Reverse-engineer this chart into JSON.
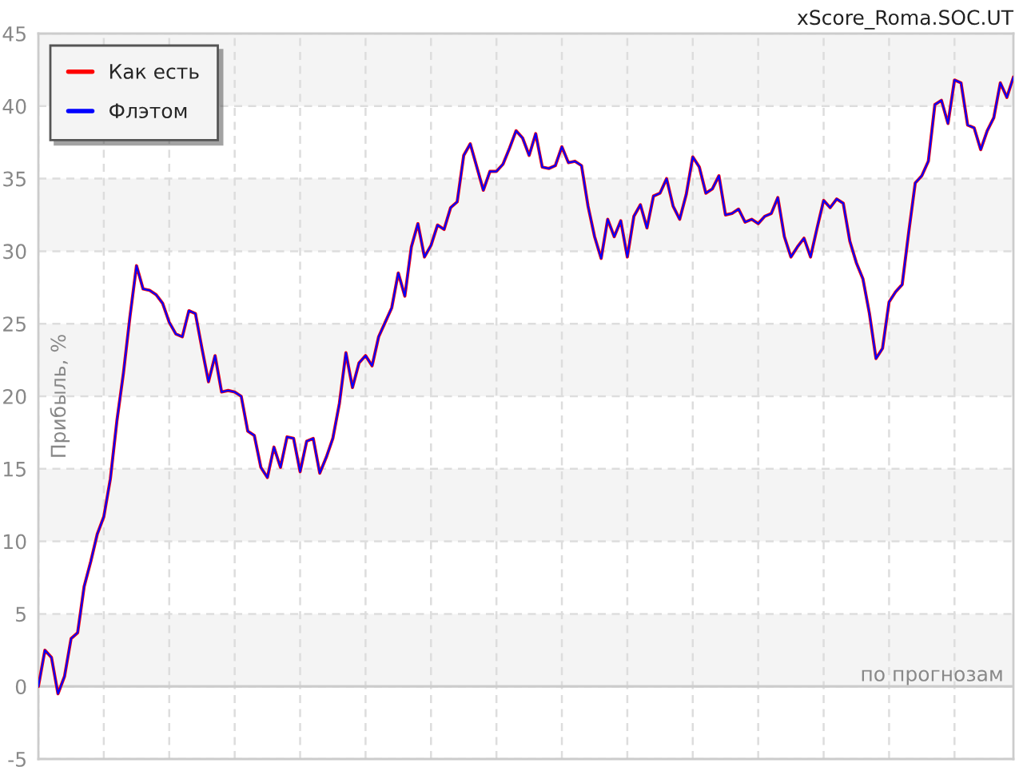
{
  "chart_data": {
    "type": "line",
    "title": "xScore_Roma.SOC.UT",
    "xlabel": "по прогнозам",
    "ylabel": "Прибыль, %",
    "categories": [
      null,
      null,
      null,
      null,
      null,
      null,
      null,
      null,
      null,
      null,
      null,
      null,
      null,
      null,
      null,
      null,
      null,
      null,
      null,
      null,
      null,
      null,
      null,
      null,
      null,
      null,
      null,
      null,
      null,
      null,
      null,
      null,
      null,
      null,
      null,
      null,
      null,
      null,
      null,
      null,
      null,
      null,
      null,
      null,
      null,
      null,
      null,
      null,
      null,
      null,
      null,
      null,
      null,
      null,
      null,
      null,
      null,
      null,
      null,
      null,
      null,
      null,
      null,
      null,
      null,
      null,
      null,
      null,
      null,
      null,
      null,
      null,
      null,
      null,
      null,
      null,
      null,
      null,
      null,
      null,
      null,
      null,
      null,
      null,
      null,
      null,
      null,
      null,
      null,
      null,
      null,
      null,
      null,
      null,
      null,
      null,
      null,
      null,
      null,
      null,
      null,
      null,
      null,
      null,
      null,
      null,
      null,
      null,
      null,
      null,
      null,
      null,
      null,
      null,
      null,
      null,
      null,
      null,
      null,
      null,
      null,
      null,
      null,
      null,
      null,
      null,
      null,
      null,
      null,
      null,
      null,
      null,
      null,
      null,
      null,
      null,
      null,
      null,
      null,
      null,
      null,
      null,
      null,
      null,
      null,
      null,
      null,
      null,
      null,
      null
    ],
    "series": [
      {
        "name": "Как есть",
        "color": "#ff0000",
        "values": [
          0,
          2.5,
          2.0,
          -0.5,
          0.7,
          3.3,
          3.7,
          6.9,
          8.6,
          10.5,
          11.7,
          14.3,
          18.3,
          21.6,
          25.5,
          29.0,
          27.4,
          27.3,
          27.0,
          26.4,
          25.1,
          24.3,
          24.1,
          25.9,
          25.7,
          23.3,
          21.0,
          22.8,
          20.3,
          20.4,
          20.3,
          20.0,
          17.6,
          17.3,
          15.1,
          14.4,
          16.5,
          15.1,
          17.2,
          17.1,
          14.8,
          16.9,
          17.1,
          14.7,
          15.8,
          17.1,
          19.5,
          23.0,
          20.6,
          22.3,
          22.8,
          22.1,
          24.1,
          25.1,
          26.1,
          28.5,
          26.9,
          30.3,
          31.9,
          29.6,
          30.4,
          31.8,
          31.5,
          33.0,
          33.4,
          36.6,
          37.4,
          35.8,
          34.2,
          35.5,
          35.5,
          36.0,
          37.1,
          38.3,
          37.8,
          36.6,
          38.1,
          35.8,
          35.7,
          35.9,
          37.2,
          36.1,
          36.2,
          35.9,
          33.1,
          31.0,
          29.5,
          32.2,
          31.0,
          32.1,
          29.6,
          32.4,
          33.2,
          31.6,
          33.8,
          34.0,
          35.0,
          33.1,
          32.2,
          33.9,
          36.5,
          35.8,
          34.0,
          34.3,
          35.2,
          32.5,
          32.6,
          32.9,
          32.0,
          32.2,
          31.9,
          32.4,
          32.6,
          33.7,
          31.0,
          29.6,
          30.3,
          30.9,
          29.6,
          31.6,
          33.5,
          33.0,
          33.6,
          33.3,
          30.7,
          29.2,
          28.1,
          25.7,
          22.6,
          23.3,
          26.5,
          27.2,
          27.7,
          31.3,
          34.7,
          35.2,
          36.2,
          40.1,
          40.4,
          38.8,
          41.8,
          41.6,
          38.7,
          38.5,
          37.0,
          38.3,
          39.2,
          41.6,
          40.6,
          42.0
        ]
      },
      {
        "name": "Флэтом",
        "color": "#0000ff",
        "values": [
          0,
          2.5,
          2.0,
          -0.5,
          0.7,
          3.3,
          3.7,
          6.9,
          8.6,
          10.5,
          11.7,
          14.3,
          18.3,
          21.6,
          25.5,
          29.0,
          27.4,
          27.3,
          27.0,
          26.4,
          25.1,
          24.3,
          24.1,
          25.9,
          25.7,
          23.3,
          21.0,
          22.8,
          20.3,
          20.4,
          20.3,
          20.0,
          17.6,
          17.3,
          15.1,
          14.4,
          16.5,
          15.1,
          17.2,
          17.1,
          14.8,
          16.9,
          17.1,
          14.7,
          15.8,
          17.1,
          19.5,
          23.0,
          20.6,
          22.3,
          22.8,
          22.1,
          24.1,
          25.1,
          26.1,
          28.5,
          26.9,
          30.3,
          31.9,
          29.6,
          30.4,
          31.8,
          31.5,
          33.0,
          33.4,
          36.6,
          37.4,
          35.8,
          34.2,
          35.5,
          35.5,
          36.0,
          37.1,
          38.3,
          37.8,
          36.6,
          38.1,
          35.8,
          35.7,
          35.9,
          37.2,
          36.1,
          36.2,
          35.9,
          33.1,
          31.0,
          29.5,
          32.2,
          31.0,
          32.1,
          29.6,
          32.4,
          33.2,
          31.6,
          33.8,
          34.0,
          35.0,
          33.1,
          32.2,
          33.9,
          36.5,
          35.8,
          34.0,
          34.3,
          35.2,
          32.5,
          32.6,
          32.9,
          32.0,
          32.2,
          31.9,
          32.4,
          32.6,
          33.7,
          31.0,
          29.6,
          30.3,
          30.9,
          29.6,
          31.6,
          33.5,
          33.0,
          33.6,
          33.3,
          30.7,
          29.2,
          28.1,
          25.7,
          22.6,
          23.3,
          26.5,
          27.2,
          27.7,
          31.3,
          34.7,
          35.2,
          36.2,
          40.1,
          40.4,
          38.8,
          41.8,
          41.6,
          38.7,
          38.5,
          37.0,
          38.3,
          39.2,
          41.6,
          40.6,
          42.0
        ]
      }
    ],
    "ylim": [
      -5,
      45
    ],
    "yticks": [
      -5,
      0,
      5,
      10,
      15,
      20,
      25,
      30,
      35,
      40,
      45
    ],
    "bands": [
      {
        "axis": "y",
        "from": 40,
        "to": 45,
        "color": "#f4f4f4"
      },
      {
        "axis": "y",
        "from": 30,
        "to": 35,
        "color": "#f4f4f4"
      },
      {
        "axis": "y",
        "from": 20,
        "to": 25,
        "color": "#f4f4f4"
      },
      {
        "axis": "y",
        "from": 10,
        "to": 15,
        "color": "#f4f4f4"
      },
      {
        "axis": "y",
        "from": 0,
        "to": 5,
        "color": "#f4f4f4"
      }
    ],
    "ref_lines": [
      {
        "axis": "y",
        "value": 0,
        "color": "#cccccc"
      }
    ],
    "grid": true,
    "legend": "top left",
    "tick_labels": "y"
  }
}
